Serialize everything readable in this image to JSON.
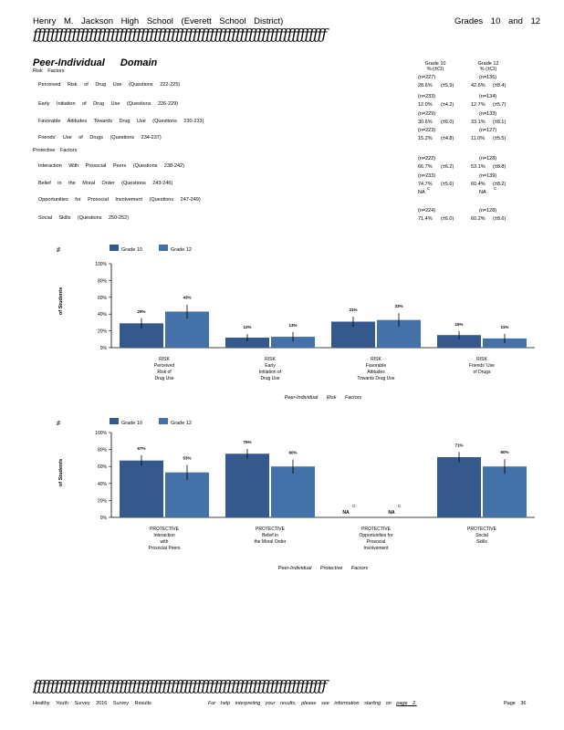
{
  "header": {
    "school": "Henry M. Jackson High School (Everett School District)",
    "grades": "Grades 10 and 12",
    "rule": "ƒƒƒƒƒƒƒƒƒƒƒƒƒƒƒƒƒƒƒƒƒƒƒƒƒƒƒƒƒƒƒƒƒƒƒƒƒƒƒƒƒƒƒƒƒƒƒƒƒƒƒƒƒƒƒƒƒƒƒƒƒƒƒƒƒƒƒƒ"
  },
  "domain_title": "Peer-Individual Domain",
  "table": {
    "col_headers": [
      {
        "grade": "Grade 10",
        "sub": "% (±CI)"
      },
      {
        "grade": "Grade 12",
        "sub": "% (±CI)"
      }
    ],
    "risk_label": "Risk Factors",
    "protective_label": "Protective Factors",
    "risk_rows": [
      {
        "label": "Perceived Risk of Drug Use (Questions 222-225)",
        "n10": "(n=227)",
        "n12": "(n=136)",
        "p10": "28.6%",
        "ci10": "(±5.9)",
        "p12": "42.6%",
        "ci12": "(±8.4)"
      },
      {
        "label": "Early Initiation of Drug Use (Questions 226-229)",
        "n10": "(n=233)",
        "n12": "(n=134)",
        "p10": "12.0%",
        "ci10": "(±4.2)",
        "p12": "12.7%",
        "ci12": "(±5.7)"
      },
      {
        "label": "Favorable Attitudes Towards Drug Use (Questions 230-233)",
        "n10": "(n=229)",
        "n12": "(n=133)",
        "p10": "30.6%",
        "ci10": "(±6.0)",
        "p12": "33.1%",
        "ci12": "(±8.1)"
      },
      {
        "label": "Friends' Use of Drugs (Questions 234-237)",
        "n10": "(n=223)",
        "n12": "(n=127)",
        "p10": "15.2%",
        "ci10": "(±4.8)",
        "p12": "11.0%",
        "ci12": "(±5.5)"
      }
    ],
    "protective_rows": [
      {
        "label": "Interaction With Prosocial Peers (Questions 238-242)",
        "n10": "(n=222)",
        "n12": "(n=128)",
        "p10": "66.7%",
        "ci10": "(±6.2)",
        "p12": "53.1%",
        "ci12": "(±8.8)"
      },
      {
        "label": "Belief in the Moral Order (Questions 243-246)",
        "n10": "(n=233)",
        "n12": "(n=139)",
        "p10": "74.7%",
        "ci10": "(±5.6)",
        "p12": "60.4%",
        "ci12": "(±8.2)"
      },
      {
        "label": "Opportunities for Prosocial Involvement (Questions 247-249)",
        "n10": "NA",
        "n12": "NA",
        "sup10": "C",
        "sup12": "C",
        "p10": "",
        "ci10": "",
        "p12": "",
        "ci12": ""
      },
      {
        "label": "Social Skills (Questions 250-252)",
        "n10": "(n=224)",
        "n12": "(n=128)",
        "p10": "71.4%",
        "ci10": "(±6.0)",
        "p12": "60.2%",
        "ci12": "(±8.6)"
      }
    ]
  },
  "chart_data": [
    {
      "type": "bar",
      "ylabel_pct": "%",
      "ylabel": "of Students",
      "xlabel": "Peer-Individual Risk Factors",
      "ylim": [
        0,
        100
      ],
      "yticks": [
        "0%",
        "20%",
        "40%",
        "60%",
        "80%",
        "100%"
      ],
      "legend_placement": "top-left",
      "categories": [
        [
          "RISK",
          "Perceived",
          "Risk of",
          "Drug Use"
        ],
        [
          "RISK",
          "Early",
          "Initiation of",
          "Drug Use"
        ],
        [
          "RISK",
          "Favorable",
          "Attitudes",
          "Towards Drug Use"
        ],
        [
          "RISK",
          "Friends' Use",
          "of Drugs"
        ]
      ],
      "series": [
        {
          "name": "Grade 10",
          "values": [
            29,
            12,
            31,
            15
          ],
          "ci": [
            5.9,
            4.2,
            6.0,
            4.8
          ],
          "labels": [
            "29%",
            "12%",
            "31%",
            "15%"
          ],
          "color": "#35598c"
        },
        {
          "name": "Grade 12",
          "values": [
            43,
            13,
            33,
            11
          ],
          "ci": [
            8.4,
            5.7,
            8.1,
            5.5
          ],
          "labels": [
            "43%",
            "13%",
            "33%",
            "11%"
          ],
          "color": "#4471a8"
        }
      ]
    },
    {
      "type": "bar",
      "ylabel_pct": "%",
      "ylabel": "of Students",
      "xlabel": "Peer-Individual Protective Factors",
      "ylim": [
        0,
        100
      ],
      "yticks": [
        "0%",
        "20%",
        "40%",
        "60%",
        "80%",
        "100%"
      ],
      "legend_placement": "top-left",
      "categories": [
        [
          "PROTECTIVE",
          "Interaction",
          "with",
          "Prosocial Peers"
        ],
        [
          "PROTECTIVE",
          "Belief in",
          "the Moral Order"
        ],
        [
          "PROTECTIVE",
          "Opportunities for",
          "Prosocial",
          "Involvement"
        ],
        [
          "PROTECTIVE",
          "Social",
          "Skills"
        ]
      ],
      "series": [
        {
          "name": "Grade 10",
          "values": [
            67,
            75,
            null,
            71
          ],
          "ci": [
            6.2,
            5.6,
            null,
            6.0
          ],
          "labels": [
            "67%",
            "75%",
            "NA",
            "71%"
          ],
          "color": "#35598c"
        },
        {
          "name": "Grade 12",
          "values": [
            53,
            60,
            null,
            60
          ],
          "ci": [
            8.8,
            8.2,
            null,
            8.6
          ],
          "labels": [
            "53%",
            "60%",
            "NA",
            "60%"
          ],
          "color": "#4471a8"
        }
      ],
      "na_superscript": "C"
    }
  ],
  "footer": {
    "left": "Healthy Youth Survey 2016 Survey Results",
    "middle": "For help interpreting your results, please see information starting on",
    "link": "page 2.",
    "right": "Page 36"
  }
}
